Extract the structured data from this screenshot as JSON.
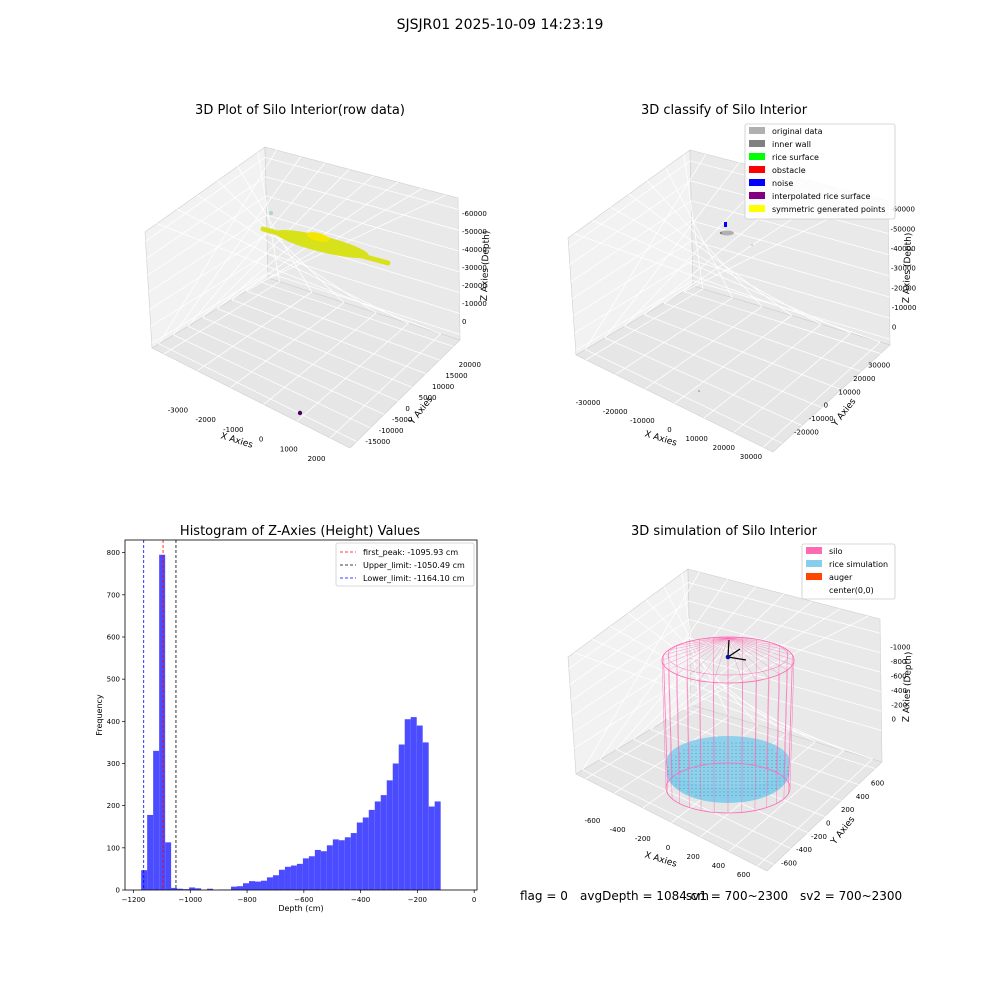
{
  "suptitle": "SJSJR01 2025-10-09 14:23:19",
  "footer": {
    "flag": "flag = 0",
    "avg": "avgDepth = 1084 cm",
    "sv1": "sv1 = 700~2300",
    "sv2": "sv2 = 700~2300"
  },
  "colors": {
    "silo": "#ff69b4",
    "rice": "#87ceeb",
    "auger": "#ff4500",
    "hist": "#4b4bff",
    "raw_surface": "#d7e21a"
  },
  "chart_data": [
    {
      "type": "scatter3d",
      "title": "3D Plot of Silo Interior(row data)",
      "xlabel": "X Axies",
      "ylabel": "Y Axies",
      "zlabel": "Z Axies (Depth)",
      "x_ticks": [
        "-3000",
        "-2000",
        "-1000",
        "0",
        "1000",
        "2000"
      ],
      "y_ticks": [
        "-15000",
        "-10000",
        "-5000",
        "0",
        "5000",
        "10000",
        "15000",
        "20000"
      ],
      "z_ticks": [
        "0",
        "-10000",
        "-20000",
        "-30000",
        "-40000",
        "-50000",
        "-60000"
      ],
      "xlim": [
        -3500,
        2500
      ],
      "ylim": [
        -17000,
        22000
      ],
      "zlim": [
        -62000,
        0
      ]
    },
    {
      "type": "scatter3d",
      "title": "3D classify of Silo Interior",
      "xlabel": "X Axies",
      "ylabel": "Y Axies",
      "zlabel": "Z Axies (Depth)",
      "x_ticks": [
        "-30000",
        "-20000",
        "-10000",
        "0",
        "10000",
        "20000",
        "30000"
      ],
      "y_ticks": [
        "-20000",
        "-10000",
        "0",
        "10000",
        "20000",
        "30000"
      ],
      "z_ticks": [
        "0",
        "-10000",
        "-20000",
        "-30000",
        "-40000",
        "-50000",
        "-60000"
      ],
      "legend": [
        {
          "label": "original data",
          "color": "#b0b0b0"
        },
        {
          "label": "inner wall",
          "color": "#808080"
        },
        {
          "label": "rice surface",
          "color": "#00ff00"
        },
        {
          "label": "obstacle",
          "color": "#ff0000"
        },
        {
          "label": "noise",
          "color": "#0000ff"
        },
        {
          "label": "interpolated rice surface",
          "color": "#800080"
        },
        {
          "label": "symmetric generated points",
          "color": "#ffff00"
        }
      ],
      "legend_loc": "top-right"
    },
    {
      "type": "bar",
      "title": "Histogram of Z-Axies (Height) Values",
      "xlabel": "Depth (cm)",
      "ylabel": "Frequency",
      "xlim": [
        -1230,
        10
      ],
      "ylim": [
        0,
        830
      ],
      "x_ticks": [
        -1200,
        -1000,
        -800,
        -600,
        -400,
        -200,
        0
      ],
      "y_ticks": [
        0,
        100,
        200,
        300,
        400,
        500,
        600,
        700,
        800
      ],
      "bin_start": -1173,
      "bin_width": 21.1,
      "values": [
        47,
        178,
        330,
        795,
        113,
        5,
        3,
        2,
        6,
        4,
        0,
        3,
        0,
        1,
        1,
        8,
        9,
        16,
        21,
        20,
        22,
        30,
        35,
        48,
        55,
        58,
        62,
        75,
        80,
        95,
        92,
        106,
        120,
        118,
        125,
        135,
        160,
        172,
        190,
        210,
        225,
        260,
        300,
        345,
        405,
        410,
        390,
        350,
        198,
        210
      ],
      "vlines": [
        {
          "label": "first_peak: -1095.93 cm",
          "x": -1095.93,
          "color": "red"
        },
        {
          "label": "Upper_limit: -1050.49 cm",
          "x": -1050.49,
          "color": "black"
        },
        {
          "label": "Lower_limit: -1164.10 cm",
          "x": -1164.1,
          "color": "blue"
        }
      ],
      "legend_loc": "top-right"
    },
    {
      "type": "surface3d",
      "title": "3D simulation of Silo Interior",
      "xlabel": "X Axies",
      "ylabel": "Y Axies",
      "zlabel": "Z Axies (Depth)",
      "x_ticks": [
        "-600",
        "-400",
        "-200",
        "0",
        "200",
        "400",
        "600"
      ],
      "y_ticks": [
        "-600",
        "-400",
        "-200",
        "0",
        "200",
        "400",
        "600"
      ],
      "z_ticks": [
        "0",
        "-200",
        "-400",
        "-600",
        "-800",
        "-1000"
      ],
      "legend": [
        {
          "label": "silo",
          "color": "#ff69b4"
        },
        {
          "label": "rice simulation",
          "color": "#87ceeb"
        },
        {
          "label": "auger",
          "color": "#ff4500"
        },
        {
          "label": "center(0,0)",
          "color": ""
        }
      ],
      "legend_loc": "top-right"
    }
  ]
}
